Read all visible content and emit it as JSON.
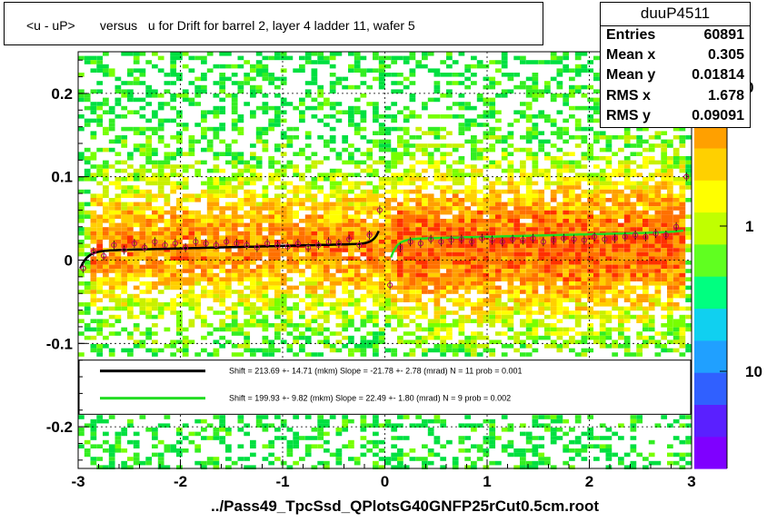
{
  "title": "<u - uP>       versus   u for Drift for barrel 2, layer 4 ladder 11, wafer 5",
  "stats": {
    "name": "duuP4511",
    "rows": [
      {
        "label": "Entries",
        "value": "60891"
      },
      {
        "label": "Mean x",
        "value": "0.305"
      },
      {
        "label": "Mean y",
        "value": "0.01814"
      },
      {
        "label": "RMS x",
        "value": "1.678"
      },
      {
        "label": "RMS y",
        "value": "0.09091"
      }
    ]
  },
  "colorbar": {
    "tick_labels": [
      "10",
      "1",
      "0"
    ],
    "tick_values": [
      10,
      1,
      0
    ],
    "palette": [
      "#7f00ff",
      "#5a20ff",
      "#3060ff",
      "#20a0ff",
      "#10d0f0",
      "#00ff80",
      "#60ff20",
      "#c0ff00",
      "#ffff00",
      "#ffd000",
      "#ffa000",
      "#ff6000",
      "#ff2000"
    ]
  },
  "legend": {
    "entries": [
      {
        "text": "Shift =   213.69 +- 14.71 (mkm) Slope =   -21.78 +- 2.78 (mrad)  N = 11 prob = 0.001",
        "color": "#000000"
      },
      {
        "text": "Shift =   199.93 +- 9.82 (mkm) Slope =    22.49 +- 1.80 (mrad)  N = 9 prob = 0.002",
        "color": "#22dd22"
      }
    ]
  },
  "chart_data": {
    "type": "heatmap",
    "title": "<u - uP>       versus   u for Drift for barrel 2, layer 4 ladder 11, wafer 5",
    "xlabel": "../Pass49_TpcSsd_QPlotsG40GNFP25rCut0.5cm.root",
    "ylabel": "",
    "xlim": [
      -3,
      3
    ],
    "ylim": [
      -0.25,
      0.25
    ],
    "x_ticks": [
      -3,
      -2,
      -1,
      0,
      1,
      2,
      3
    ],
    "y_ticks": [
      -0.2,
      -0.1,
      0,
      0.1,
      0.2
    ],
    "x_tick_labels": [
      "-3",
      "-2",
      "-1",
      "0",
      "1",
      "2",
      "3"
    ],
    "y_tick_labels": [
      "-0.2",
      "-0.1",
      "0",
      "0.1",
      "0.2"
    ],
    "grid": true,
    "profile_points": {
      "x": [
        -2.95,
        -2.85,
        -2.75,
        -2.65,
        -2.55,
        -2.45,
        -2.35,
        -2.25,
        -2.15,
        -2.05,
        -1.95,
        -1.85,
        -1.75,
        -1.65,
        -1.55,
        -1.45,
        -1.35,
        -1.25,
        -1.15,
        -1.05,
        -0.95,
        -0.85,
        -0.75,
        -0.65,
        -0.55,
        -0.45,
        -0.35,
        -0.25,
        -0.15,
        -0.05,
        0.05,
        0.15,
        0.25,
        0.35,
        0.45,
        0.55,
        0.65,
        0.75,
        0.85,
        0.95,
        1.05,
        1.15,
        1.25,
        1.35,
        1.45,
        1.55,
        1.65,
        1.75,
        1.85,
        1.95,
        2.05,
        2.15,
        2.25,
        2.35,
        2.45,
        2.55,
        2.65,
        2.75,
        2.85,
        2.95
      ],
      "y": [
        -0.01,
        0.01,
        0.005,
        0.018,
        0.012,
        0.02,
        0.015,
        0.022,
        0.018,
        0.02,
        0.015,
        0.022,
        0.02,
        0.018,
        0.022,
        0.02,
        0.018,
        0.015,
        0.02,
        0.018,
        0.016,
        0.02,
        0.015,
        0.018,
        0.022,
        0.02,
        0.025,
        0.018,
        0.03,
        0.06,
        -0.03,
        0.015,
        0.022,
        0.02,
        0.025,
        0.022,
        0.024,
        0.025,
        0.022,
        0.026,
        0.024,
        0.022,
        0.025,
        0.024,
        0.026,
        0.022,
        0.024,
        0.026,
        0.025,
        0.024,
        0.028,
        0.025,
        0.026,
        0.028,
        0.03,
        0.028,
        0.032,
        0.03,
        0.04,
        0.1
      ]
    },
    "series": [
      {
        "type": "fit",
        "color": "#000000",
        "x_range": [
          -3,
          0
        ],
        "shift_mkm": 213.69,
        "slope_mrad": -21.78
      },
      {
        "type": "fit",
        "color": "#22dd22",
        "x_range": [
          0,
          3
        ],
        "shift_mkm": 199.93,
        "slope_mrad": 22.49
      }
    ]
  }
}
